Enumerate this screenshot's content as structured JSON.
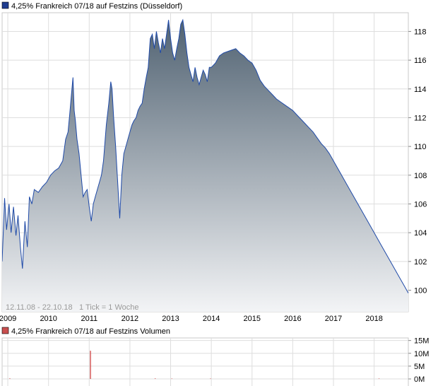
{
  "chart_data": [
    {
      "type": "area",
      "title": "4,25% Frankreich 07/18 auf Festzins (Düsseldorf)",
      "legend_color": "#1f3c8f",
      "line_color": "#1f4aa8",
      "fill_top_color": "#4d5f6f",
      "fill_bottom_color": "#f3f4f6",
      "xlabel": "",
      "ylabel": "",
      "x_ticks": [
        "2009",
        "2010",
        "2011",
        "2012",
        "2013",
        "2014",
        "2015",
        "2016",
        "2017",
        "2018"
      ],
      "y_ticks": [
        100,
        102,
        104,
        106,
        108,
        110,
        112,
        114,
        116,
        118
      ],
      "ylim": [
        98.5,
        119.3
      ],
      "xlim": [
        2008.86,
        2018.84
      ],
      "grid": true,
      "date_range": "12.11.08 - 22.10.18",
      "tick_info": "1 Tick = 1 Woche",
      "x": [
        2008.86,
        2008.92,
        2008.97,
        2009.03,
        2009.08,
        2009.14,
        2009.2,
        2009.25,
        2009.31,
        2009.36,
        2009.42,
        2009.48,
        2009.53,
        2009.59,
        2009.65,
        2009.75,
        2009.85,
        2009.95,
        2010.05,
        2010.15,
        2010.25,
        2010.35,
        2010.42,
        2010.48,
        2010.52,
        2010.56,
        2010.6,
        2010.63,
        2010.66,
        2010.7,
        2010.75,
        2010.8,
        2010.85,
        2010.9,
        2010.95,
        2011.0,
        2011.05,
        2011.1,
        2011.15,
        2011.2,
        2011.25,
        2011.3,
        2011.35,
        2011.42,
        2011.48,
        2011.53,
        2011.56,
        2011.6,
        2011.65,
        2011.7,
        2011.75,
        2011.8,
        2011.85,
        2011.9,
        2011.95,
        2012.0,
        2012.05,
        2012.1,
        2012.15,
        2012.2,
        2012.25,
        2012.3,
        2012.35,
        2012.4,
        2012.45,
        2012.5,
        2012.55,
        2012.6,
        2012.65,
        2012.7,
        2012.75,
        2012.8,
        2012.85,
        2012.9,
        2012.95,
        2013.0,
        2013.05,
        2013.1,
        2013.15,
        2013.2,
        2013.25,
        2013.3,
        2013.35,
        2013.4,
        2013.45,
        2013.5,
        2013.55,
        2013.6,
        2013.65,
        2013.7,
        2013.75,
        2013.8,
        2013.85,
        2013.9,
        2013.95,
        2014.0,
        2014.1,
        2014.2,
        2014.3,
        2014.4,
        2014.5,
        2014.6,
        2014.7,
        2014.8,
        2014.9,
        2015.0,
        2015.1,
        2015.2,
        2015.3,
        2015.4,
        2015.5,
        2015.6,
        2015.7,
        2015.8,
        2015.9,
        2016.0,
        2016.1,
        2016.2,
        2016.3,
        2016.4,
        2016.5,
        2016.6,
        2016.7,
        2016.8,
        2016.9,
        2017.0,
        2017.2,
        2017.4,
        2017.6,
        2017.8,
        2018.0,
        2018.2,
        2018.4,
        2018.6,
        2018.7,
        2018.76,
        2018.8,
        2018.84
      ],
      "values": [
        102.0,
        106.4,
        104.2,
        106.0,
        104.0,
        105.8,
        103.8,
        105.2,
        103.0,
        101.5,
        104.8,
        103.0,
        106.5,
        106.0,
        107.0,
        106.8,
        107.2,
        107.5,
        108.0,
        108.3,
        108.5,
        109.0,
        110.5,
        111.0,
        112.2,
        113.5,
        114.8,
        112.5,
        111.8,
        110.5,
        109.5,
        108.0,
        106.5,
        106.8,
        107.0,
        105.8,
        104.8,
        106.0,
        106.5,
        107.0,
        107.5,
        108.0,
        109.0,
        111.5,
        113.0,
        114.5,
        114.0,
        112.0,
        110.0,
        107.5,
        105.0,
        108.0,
        109.5,
        110.0,
        110.5,
        111.0,
        111.5,
        111.8,
        112.0,
        112.5,
        112.8,
        113.0,
        114.0,
        114.8,
        115.5,
        117.5,
        117.8,
        116.8,
        118.0,
        117.2,
        116.5,
        117.5,
        116.8,
        117.8,
        118.8,
        117.5,
        116.5,
        116.0,
        116.8,
        117.5,
        118.5,
        118.8,
        117.8,
        116.5,
        115.5,
        115.0,
        114.5,
        115.5,
        114.8,
        114.3,
        114.8,
        115.3,
        115.0,
        114.5,
        115.5,
        115.5,
        115.8,
        116.3,
        116.5,
        116.6,
        116.7,
        116.8,
        116.5,
        116.3,
        116.0,
        115.8,
        115.3,
        114.6,
        114.2,
        113.9,
        113.6,
        113.3,
        113.1,
        112.9,
        112.7,
        112.5,
        112.2,
        111.9,
        111.6,
        111.3,
        111.0,
        110.6,
        110.2,
        109.9,
        109.5,
        109.0,
        108.0,
        107.0,
        106.0,
        105.0,
        104.0,
        103.0,
        102.0,
        101.0,
        100.5,
        100.2,
        100.0,
        99.8
      ]
    },
    {
      "type": "bar",
      "title": "4,25% Frankreich 07/18 auf Festzins Volumen",
      "legend_color": "#c94f4f",
      "bar_color": "#cc3333",
      "y_ticks": [
        0,
        5,
        10,
        15
      ],
      "y_tick_labels": [
        "0M",
        "5M",
        "10M",
        "15M"
      ],
      "ylim": [
        0,
        16
      ],
      "x": [
        2009.05,
        2011.03,
        2012.62,
        2013.03,
        2013.98,
        2018.12
      ],
      "values": [
        0.2,
        11.0,
        0.2,
        0.15,
        0.15,
        0.15
      ]
    }
  ]
}
